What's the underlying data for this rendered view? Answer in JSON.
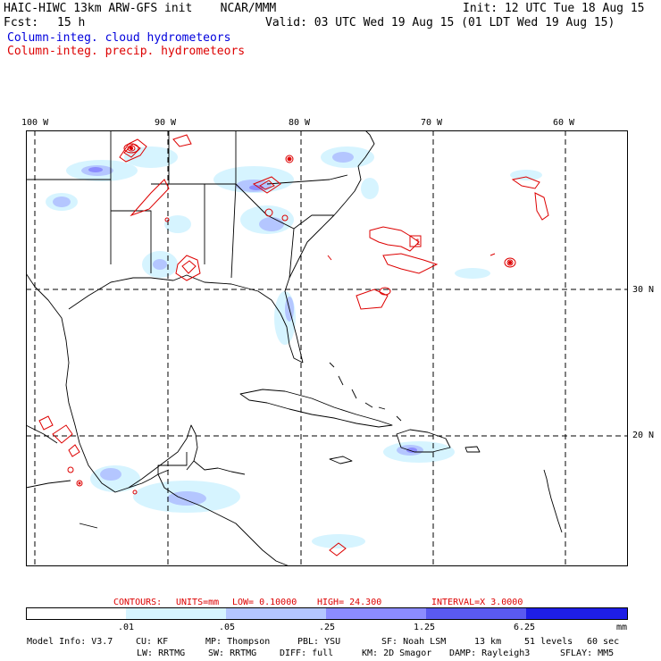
{
  "header": {
    "title": "HAIC-HIWC 13km ARW-GFS init    NCAR/MMM",
    "init": "Init: 12 UTC Tue 18 Aug 15",
    "fcst_label": "Fcst:",
    "fcst_value": "15 h",
    "valid": "Valid: 03 UTC Wed 19 Aug 15 (01 LDT Wed 19 Aug 15)",
    "legend_cloud": "Column-integ. cloud hydrometeors",
    "legend_precip": "Column-integ. precip. hydrometeors"
  },
  "colors": {
    "cloud_text": "#0000dd",
    "precip": "#dd0000",
    "fill_1": "#d6f4ff",
    "fill_2": "#b4c6ff",
    "fill_3": "#8c8cff",
    "fill_4": "#5a5af0",
    "fill_5": "#1e1ee6"
  },
  "map": {
    "lon_labels": [
      "100 W",
      "90 W",
      "80 W",
      "70 W",
      "60 W"
    ],
    "lat_labels": [
      "30 N",
      "20 N"
    ],
    "max_marker": "1"
  },
  "contours": {
    "label": "CONTOURS:",
    "units": "UNITS=mm",
    "low": "LOW= 0.10000",
    "high": "HIGH= 24.300",
    "interval": "INTERVAL=X 3.0000"
  },
  "colorbar": {
    "ticks": [
      ".01",
      ".05",
      ".25",
      "1.25",
      "6.25"
    ],
    "unit": "mm"
  },
  "model_info": {
    "line1": [
      "Model Info: V3.7",
      "CU: KF",
      "MP: Thompson",
      "PBL: YSU",
      "SF: Noah LSM",
      "13 km",
      "51 levels",
      "60 sec"
    ],
    "line2": [
      "LW: RRTMG",
      "SW: RRTMG",
      "DIFF: full",
      "KM: 2D Smagor",
      "DAMP: Rayleigh3",
      "SFLAY: MM5"
    ]
  }
}
